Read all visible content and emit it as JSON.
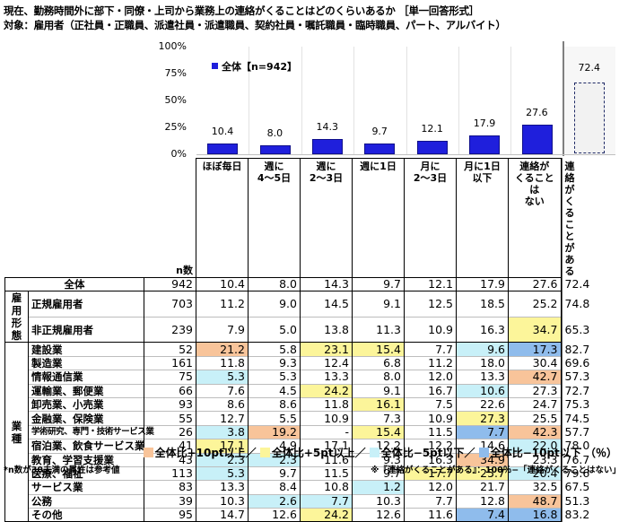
{
  "title": "現在、勤務時間外に部下・同僚・上司から業務上の連絡がくることはどのくらいあるか ［単一回答形式］",
  "subtitle": "対象：雇用者（正社員・正職員、派遣社員・派遣職員、契約社員・嘱託職員・臨時職員、パート、アルバイト）",
  "colors": {
    "bar": "#1f1fdc",
    "plus10": "#f8c49a",
    "plus5": "#fcf59a",
    "minus5": "#c8f0f8",
    "minus10": "#8fbcec"
  },
  "chart_data": {
    "type": "bar",
    "title": "現在、勤務時間外に部下・同僚・上司から業務上の連絡がくることはどのくらいあるか",
    "legend": "全体【n=942】",
    "categories": [
      "ほぼ毎日",
      "週に4～5日",
      "週に2～3日",
      "週に1日",
      "月に2～3日",
      "月に1日以下",
      "連絡がくることはない",
      "連絡がくることがある"
    ],
    "values": [
      10.4,
      8.0,
      14.3,
      9.7,
      12.1,
      17.9,
      27.6,
      72.4
    ],
    "yticks": [
      "0%",
      "25%",
      "50%",
      "75%",
      "100%"
    ],
    "ylim": [
      0,
      100
    ],
    "xlabel": "",
    "ylabel": "",
    "value_labels": [
      "10.4",
      "8.0",
      "14.3",
      "9.7",
      "12.1",
      "17.9",
      "27.6",
      "72.4"
    ],
    "note": "last bar drawn dashed (derived value)"
  },
  "table": {
    "n_header": "n数",
    "columns": [
      "ほぼ毎日",
      "週に\n4～5日",
      "週に\n2～3日",
      "週に1日",
      "月に\n2～3日",
      "月に1日\n以下",
      "連絡が\nくることは\nない",
      "連絡が\nくることが\nある"
    ],
    "total": {
      "label": "全体",
      "n": "942",
      "values": [
        "10.4",
        "8.0",
        "14.3",
        "9.7",
        "12.1",
        "17.9",
        "27.6",
        "72.4"
      ],
      "hl": [
        "",
        "",
        "",
        "",
        "",
        "",
        "",
        ""
      ]
    },
    "groups": [
      {
        "label": "雇用\n形態",
        "rows": [
          {
            "label": "正規雇用者",
            "n": "703",
            "values": [
              "11.2",
              "9.0",
              "14.5",
              "9.1",
              "12.5",
              "18.5",
              "25.2",
              "74.8"
            ],
            "hl": [
              "",
              "",
              "",
              "",
              "",
              "",
              "",
              ""
            ]
          },
          {
            "label": "非正規雇用者",
            "n": "239",
            "values": [
              "7.9",
              "5.0",
              "13.8",
              "11.3",
              "10.9",
              "16.3",
              "34.7",
              "65.3"
            ],
            "hl": [
              "",
              "",
              "",
              "",
              "",
              "",
              "p5",
              "m5"
            ]
          }
        ]
      },
      {
        "label": "業種",
        "rows": [
          {
            "label": "建設業",
            "n": "52",
            "values": [
              "21.2",
              "5.8",
              "23.1",
              "15.4",
              "7.7",
              "9.6",
              "17.3",
              "82.7"
            ],
            "hl": [
              "p10",
              "",
              "p5",
              "p5",
              "",
              "m5",
              "m10",
              "p10"
            ]
          },
          {
            "label": "製造業",
            "n": "161",
            "values": [
              "11.8",
              "9.3",
              "12.4",
              "6.8",
              "11.2",
              "18.0",
              "30.4",
              "69.6"
            ],
            "hl": [
              "",
              "",
              "",
              "",
              "",
              "",
              "",
              ""
            ]
          },
          {
            "label": "情報通信業",
            "n": "75",
            "values": [
              "5.3",
              "5.3",
              "13.3",
              "8.0",
              "12.0",
              "13.3",
              "42.7",
              "57.3"
            ],
            "hl": [
              "m5",
              "",
              "",
              "",
              "",
              "",
              "p10",
              "m10"
            ]
          },
          {
            "label": "運輸業、郵便業",
            "n": "66",
            "values": [
              "7.6",
              "4.5",
              "24.2",
              "9.1",
              "16.7",
              "10.6",
              "27.3",
              "72.7"
            ],
            "hl": [
              "",
              "",
              "p5",
              "",
              "",
              "m5",
              "",
              ""
            ]
          },
          {
            "label": "卸売業、小売業",
            "n": "93",
            "values": [
              "8.6",
              "8.6",
              "11.8",
              "16.1",
              "7.5",
              "22.6",
              "24.7",
              "75.3"
            ],
            "hl": [
              "",
              "",
              "",
              "p5",
              "",
              "",
              "",
              ""
            ]
          },
          {
            "label": "金融業、保険業",
            "n": "55",
            "values": [
              "12.7",
              "5.5",
              "10.9",
              "7.3",
              "10.9",
              "27.3",
              "25.5",
              "74.5"
            ],
            "hl": [
              "",
              "",
              "",
              "",
              "",
              "p5",
              "",
              ""
            ]
          },
          {
            "label": "学術研究、専門・技術サービス業",
            "n": "26",
            "values": [
              "3.8",
              "19.2",
              "-",
              "15.4",
              "11.5",
              "7.7",
              "42.3",
              "57.7"
            ],
            "hl": [
              "m5",
              "p10",
              "",
              "p5",
              "",
              "m10",
              "p10",
              "m10"
            ],
            "small": true
          },
          {
            "label": "宿泊業、飲食サービス業",
            "n": "41",
            "values": [
              "17.1",
              "4.9",
              "17.1",
              "12.2",
              "12.2",
              "14.6",
              "22.0",
              "78.0"
            ],
            "hl": [
              "p5",
              "",
              "",
              "",
              "",
              "",
              "m5",
              "p5"
            ]
          },
          {
            "label": "教育、学習支援業",
            "n": "43",
            "values": [
              "2.3",
              "2.3",
              "11.6",
              "9.3",
              "16.3",
              "34.9",
              "23.3",
              "76.7"
            ],
            "hl": [
              "m5",
              "m5",
              "",
              "",
              "",
              "p10",
              "",
              ""
            ]
          },
          {
            "label": "医療、福祉",
            "n": "113",
            "values": [
              "5.3",
              "9.7",
              "11.5",
              "9.7",
              "17.7",
              "25.7",
              "20.4",
              "79.6"
            ],
            "hl": [
              "m5",
              "",
              "",
              "",
              "p5",
              "p5",
              "m5",
              "p5"
            ]
          },
          {
            "label": "サービス業",
            "n": "83",
            "values": [
              "13.3",
              "8.4",
              "10.8",
              "1.2",
              "12.0",
              "21.7",
              "32.5",
              "67.5"
            ],
            "hl": [
              "",
              "",
              "",
              "m5",
              "",
              "",
              "",
              ""
            ]
          },
          {
            "label": "公務",
            "n": "39",
            "values": [
              "10.3",
              "2.6",
              "7.7",
              "10.3",
              "7.7",
              "12.8",
              "48.7",
              "51.3"
            ],
            "hl": [
              "",
              "m5",
              "m5",
              "",
              "",
              "",
              "p10",
              "m10"
            ]
          },
          {
            "label": "その他",
            "n": "95",
            "values": [
              "14.7",
              "12.6",
              "24.2",
              "12.6",
              "11.6",
              "7.4",
              "16.8",
              "83.2"
            ],
            "hl": [
              "",
              "",
              "p5",
              "",
              "",
              "m10",
              "m10",
              "p10"
            ]
          }
        ]
      }
    ]
  },
  "legend": {
    "plus10": "全体比+10pt以上／",
    "plus5": "全体比+5pt以上／",
    "minus5": "全体比−5pt以下／",
    "minus10": "全体比−10pt以下",
    "unit": "（％）"
  },
  "footnotes": {
    "left": "*n数が30未満の属性は参考値",
    "right": "※『連絡がくることがある』：100％−「連絡がくることはない」"
  }
}
